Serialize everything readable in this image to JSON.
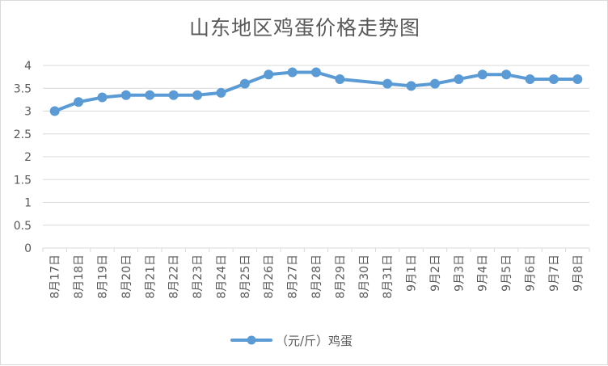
{
  "chart_data": {
    "type": "line",
    "title": "山东地区鸡蛋价格走势图",
    "categories": [
      "8月17日",
      "8月18日",
      "8月19日",
      "8月20日",
      "8月21日",
      "8月22日",
      "8月23日",
      "8月24日",
      "8月25日",
      "8月26日",
      "8月27日",
      "8月28日",
      "8月29日",
      "8月30日",
      "8月31日",
      "9月1日",
      "9月2日",
      "9月3日",
      "9月4日",
      "9月5日",
      "9月6日",
      "9月7日",
      "9月8日"
    ],
    "series": [
      {
        "name": "（元/斤）鸡蛋",
        "values": [
          3.0,
          3.2,
          3.3,
          3.35,
          3.35,
          3.35,
          3.35,
          3.4,
          3.6,
          3.8,
          3.85,
          3.85,
          3.7,
          null,
          3.6,
          3.55,
          3.6,
          3.7,
          3.8,
          3.8,
          3.7,
          3.7,
          3.7
        ],
        "color": "#5b9bd5"
      }
    ],
    "yticks": [
      "0",
      "0.5",
      "1",
      "1.5",
      "2",
      "2.5",
      "3",
      "3.5",
      "4"
    ],
    "ylim": [
      0,
      4
    ],
    "grid": true,
    "legend": "bottom"
  }
}
